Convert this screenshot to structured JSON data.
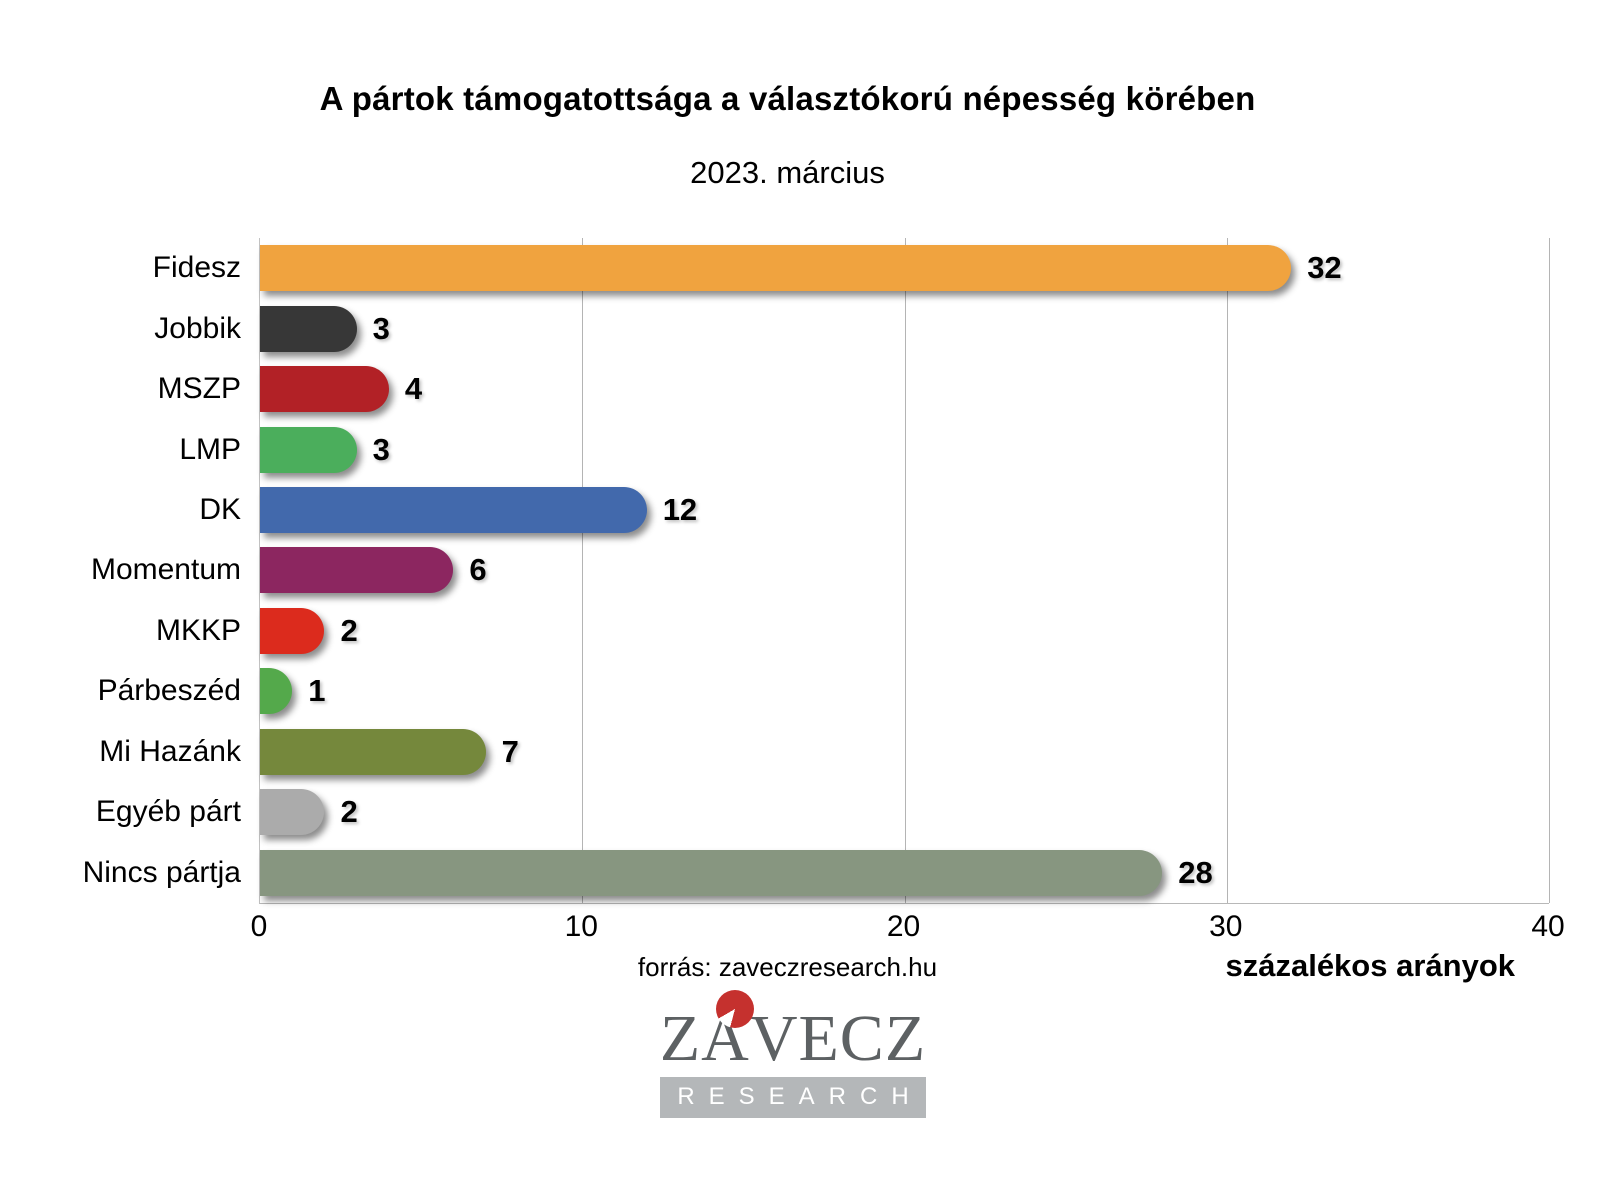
{
  "title": "A pártok támogatottsága a választókorú népesség körében",
  "subtitle": "2023. március",
  "source": "forrás: zaveczresearch.hu",
  "xlabel": "százalékos arányok",
  "logo": {
    "name": "ZÁVECZ",
    "sub": "RESEARCH",
    "text_color": "#5d6163",
    "bar_color": "#b4b7b9",
    "dot_color": "#c5312e"
  },
  "chart_data": {
    "type": "bar",
    "orientation": "horizontal",
    "title": "A pártok támogatottsága a választókorú népesség körében",
    "subtitle": "2023. március",
    "xlabel": "százalékos arányok",
    "categories": [
      "Fidesz",
      "Jobbik",
      "MSZP",
      "LMP",
      "DK",
      "Momentum",
      "MKKP",
      "Párbeszéd",
      "Mi Hazánk",
      "Egyéb párt",
      "Nincs pártja"
    ],
    "values": [
      32,
      3,
      4,
      3,
      12,
      6,
      2,
      1,
      7,
      2,
      28
    ],
    "bar_colors": [
      "#f0a33f",
      "#373737",
      "#b22126",
      "#4bae5c",
      "#4269ac",
      "#8c2660",
      "#dc2b1d",
      "#54a94b",
      "#75883c",
      "#ababab",
      "#879680"
    ],
    "x_ticks": [
      0,
      10,
      20,
      30,
      40
    ],
    "xlim": [
      0,
      40
    ],
    "grid": true,
    "legend": false
  }
}
